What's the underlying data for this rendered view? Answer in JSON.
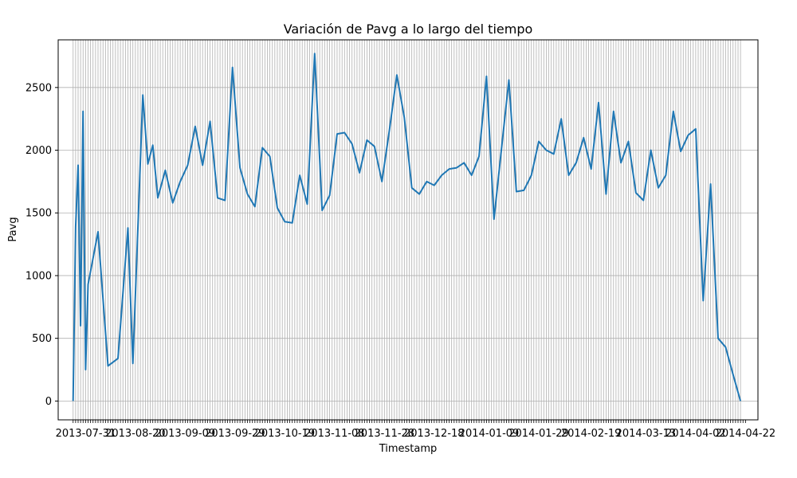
{
  "chart_data": {
    "type": "line",
    "title": "Variación de Pavg a lo largo del tiempo",
    "xlabel": "Timestamp",
    "ylabel": "Pavg",
    "x_range": [
      "2013-07-20",
      "2014-04-27"
    ],
    "ylim": [
      -150,
      2880
    ],
    "y_ticks": [
      0,
      500,
      1000,
      1500,
      2000,
      2500
    ],
    "x_tick_labels": [
      "2013-07-31",
      "2013-08-20",
      "2013-09-09",
      "2013-09-29",
      "2013-10-19",
      "2013-11-08",
      "2013-11-28",
      "2013-12-18",
      "2014-01-09",
      "2014-01-29",
      "2014-02-19",
      "2014-03-13",
      "2014-04-02",
      "2014-04-22"
    ],
    "x_tick_dates": [
      "2013-07-31",
      "2013-08-20",
      "2013-09-09",
      "2013-09-29",
      "2013-10-19",
      "2013-11-08",
      "2013-11-28",
      "2013-12-18",
      "2014-01-09",
      "2014-01-29",
      "2014-02-19",
      "2014-03-13",
      "2014-04-02",
      "2014-04-22"
    ],
    "grid": true,
    "grid_vertical": "daily",
    "line_color": "#1f77b4",
    "series": [
      {
        "x": [
          "2013-07-26",
          "2013-07-27",
          "2013-07-28",
          "2013-07-29",
          "2013-07-30",
          "2013-07-31",
          "2013-08-01",
          "2013-08-05",
          "2013-08-09",
          "2013-08-13",
          "2013-08-17",
          "2013-08-19",
          "2013-08-23",
          "2013-08-25",
          "2013-08-27",
          "2013-08-29",
          "2013-09-01",
          "2013-09-04",
          "2013-09-07",
          "2013-09-10",
          "2013-09-13",
          "2013-09-16",
          "2013-09-19",
          "2013-09-22",
          "2013-09-25",
          "2013-09-28",
          "2013-10-01",
          "2013-10-04",
          "2013-10-07",
          "2013-10-10",
          "2013-10-13",
          "2013-10-16",
          "2013-10-19",
          "2013-10-22",
          "2013-10-25",
          "2013-10-28",
          "2013-10-31",
          "2013-11-03",
          "2013-11-06",
          "2013-11-09",
          "2013-11-12",
          "2013-11-15",
          "2013-11-18",
          "2013-11-21",
          "2013-11-24",
          "2013-11-27",
          "2013-11-30",
          "2013-12-03",
          "2013-12-06",
          "2013-12-09",
          "2013-12-12",
          "2013-12-15",
          "2013-12-18",
          "2013-12-21",
          "2013-12-24",
          "2013-12-27",
          "2013-12-30",
          "2014-01-02",
          "2014-01-05",
          "2014-01-08",
          "2014-01-11",
          "2014-01-14",
          "2014-01-17",
          "2014-01-20",
          "2014-01-23",
          "2014-01-26",
          "2014-01-29",
          "2014-02-01",
          "2014-02-04",
          "2014-02-07",
          "2014-02-10",
          "2014-02-13",
          "2014-02-16",
          "2014-02-19",
          "2014-02-22",
          "2014-02-25",
          "2014-02-28",
          "2014-03-03",
          "2014-03-06",
          "2014-03-09",
          "2014-03-12",
          "2014-03-15",
          "2014-03-18",
          "2014-03-21",
          "2014-03-24",
          "2014-03-27",
          "2014-03-30",
          "2014-04-02",
          "2014-04-05",
          "2014-04-08",
          "2014-04-11",
          "2014-04-14",
          "2014-04-17",
          "2014-04-20"
        ],
        "y": [
          0,
          1390,
          1880,
          600,
          2310,
          250,
          930,
          1350,
          280,
          340,
          1380,
          300,
          2440,
          1890,
          2040,
          1620,
          1840,
          1580,
          1750,
          1880,
          2190,
          1880,
          2230,
          1620,
          1600,
          2660,
          1860,
          1650,
          1550,
          2020,
          1950,
          1540,
          1430,
          1420,
          1800,
          1570,
          2770,
          1520,
          1640,
          2130,
          2140,
          2050,
          1820,
          2080,
          2030,
          1750,
          2160,
          2600,
          2260,
          1700,
          1650,
          1750,
          1720,
          1800,
          1850,
          1860,
          1900,
          1800,
          1950,
          2590,
          1450,
          2010,
          2560,
          1670,
          1680,
          1800,
          2070,
          2000,
          1970,
          2250,
          1800,
          1900,
          2100,
          1850,
          2380,
          1650,
          2310,
          1900,
          2070,
          1660,
          1600,
          2000,
          1700,
          1800,
          2310,
          1990,
          2120,
          2170,
          800,
          1730,
          500,
          430,
          210,
          0
        ]
      }
    ]
  }
}
